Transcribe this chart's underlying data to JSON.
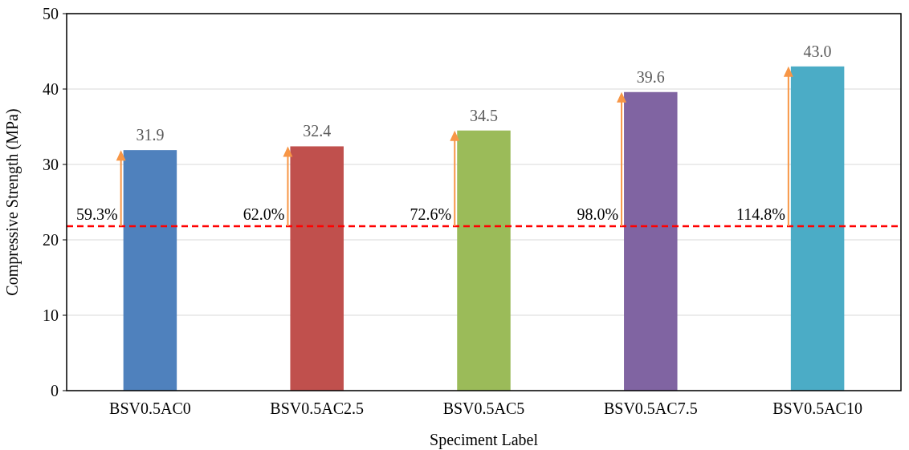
{
  "chart_data": {
    "type": "bar",
    "xlabel": "Speciment Label",
    "ylabel": "Compressive Strength (MPa)",
    "categories": [
      "BSV0.5AC0",
      "BSV0.5AC2.5",
      "BSV0.5AC5",
      "BSV0.5AC7.5",
      "BSV0.5AC10"
    ],
    "values": [
      31.9,
      32.4,
      34.5,
      39.6,
      43.0
    ],
    "value_labels": [
      "31.9",
      "32.4",
      "34.5",
      "39.6",
      "43.0"
    ],
    "colors": [
      "#4f81bd",
      "#c0504d",
      "#9bbb59",
      "#8064a2",
      "#4bacc6"
    ],
    "ylim": [
      0,
      50
    ],
    "yticks": [
      0,
      10,
      20,
      30,
      40,
      50
    ],
    "grid": "y",
    "ref_lines": [
      {
        "axis": "y",
        "value": 21.8,
        "color": "#ff0000",
        "line_style": "dashed"
      }
    ],
    "annotations": [
      {
        "text": "59.3%",
        "x": "BSV0.5AC0",
        "y": 21.8
      },
      {
        "text": "62.0%",
        "x": "BSV0.5AC2.5",
        "y": 21.8
      },
      {
        "text": "72.6%",
        "x": "BSV0.5AC5",
        "y": 21.8
      },
      {
        "text": "98.0%",
        "x": "BSV0.5AC7.5",
        "y": 21.8
      },
      {
        "text": "114.8%",
        "x": "BSV0.5AC10",
        "y": 21.8
      }
    ]
  }
}
